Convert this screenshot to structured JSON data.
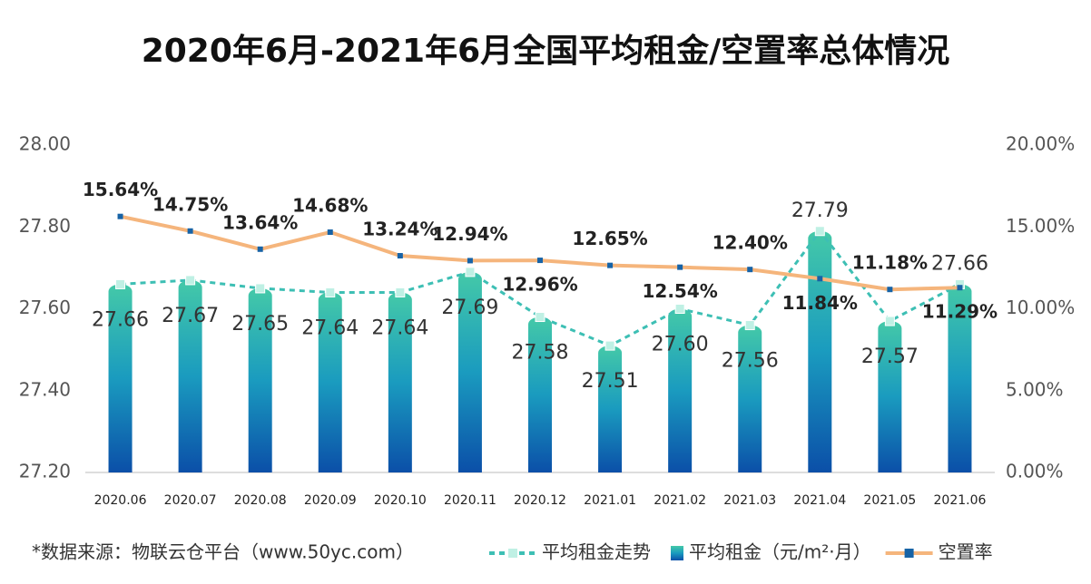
{
  "chart_data": {
    "type": "bar-line",
    "title": "2020年6月-2021年6月全国平均租金/空置率总体情况",
    "source": "*数据来源：物联云仓平台（www.50yc.com）",
    "categories": [
      "2020.06",
      "2020.07",
      "2020.08",
      "2020.09",
      "2020.10",
      "2020.11",
      "2020.12",
      "2021.01",
      "2021.02",
      "2021.03",
      "2021.04",
      "2021.05",
      "2021.06"
    ],
    "ylim": [
      27.2,
      28.0
    ],
    "yticks": [
      {
        "value": 27.2,
        "label": "27.20"
      },
      {
        "value": 27.4,
        "label": "27.40"
      },
      {
        "value": 27.6,
        "label": "27.60"
      },
      {
        "value": 27.8,
        "label": "27.80"
      },
      {
        "value": 28.0,
        "label": "28.00"
      }
    ],
    "y2lim": [
      0,
      20
    ],
    "y2ticks": [
      {
        "value": 0,
        "label": "0.00%"
      },
      {
        "value": 5,
        "label": "5.00%"
      },
      {
        "value": 10,
        "label": "10.00%"
      },
      {
        "value": 15,
        "label": "15.00%"
      },
      {
        "value": 20,
        "label": "20.00%"
      }
    ],
    "series": [
      {
        "name": "平均租金走势",
        "type": "line",
        "color": "#3dbfb4",
        "values": [
          27.66,
          27.67,
          27.65,
          27.64,
          27.64,
          27.69,
          27.58,
          27.51,
          27.6,
          27.56,
          27.79,
          27.57,
          27.66
        ]
      },
      {
        "name": "平均租金（元/m²·月）",
        "type": "bar",
        "color": "#1a9bbf",
        "values": [
          27.66,
          27.67,
          27.65,
          27.64,
          27.64,
          27.69,
          27.58,
          27.51,
          27.6,
          27.56,
          27.79,
          27.57,
          27.66
        ],
        "value_labels": [
          "27.66",
          "27.67",
          "27.65",
          "27.64",
          "27.64",
          "27.69",
          "27.58",
          "27.51",
          "27.60",
          "27.56",
          "27.79",
          "27.57",
          "27.66"
        ]
      },
      {
        "name": "空置率",
        "type": "line",
        "axis": "y2",
        "color": "#f5b57c",
        "values": [
          15.64,
          14.75,
          13.64,
          14.68,
          13.24,
          12.94,
          12.96,
          12.65,
          12.54,
          12.4,
          11.84,
          11.18,
          11.29
        ],
        "value_labels": [
          "15.64%",
          "14.75%",
          "13.64%",
          "14.68%",
          "13.24%",
          "12.94%",
          "12.96%",
          "12.65%",
          "12.54%",
          "12.40%",
          "11.84%",
          "11.18%",
          "11.29%"
        ]
      }
    ]
  }
}
